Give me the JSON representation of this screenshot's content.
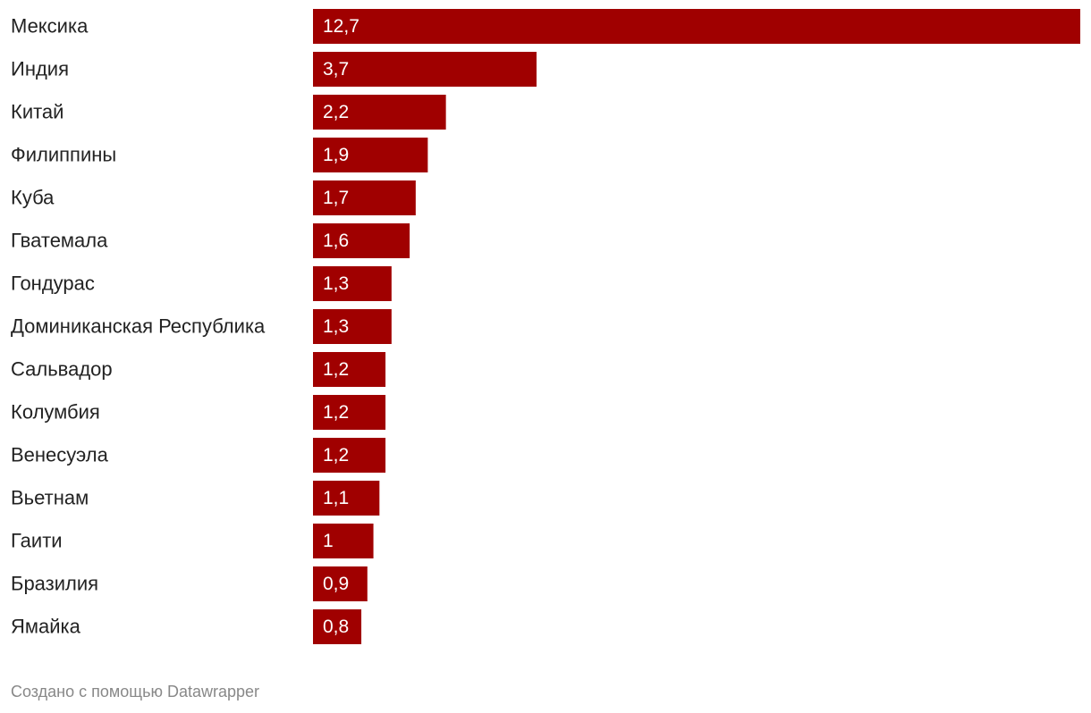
{
  "chart_data": {
    "type": "bar",
    "orientation": "horizontal",
    "color": "#a00000",
    "categories": [
      "Мексика",
      "Индия",
      "Китай",
      "Филиппины",
      "Куба",
      "Гватемала",
      "Гондурас",
      "Доминиканская Республика",
      "Сальвадор",
      "Колумбия",
      "Венесуэла",
      "Вьетнам",
      "Гаити",
      "Бразилия",
      "Ямайка"
    ],
    "values": [
      12.7,
      3.7,
      2.2,
      1.9,
      1.7,
      1.6,
      1.3,
      1.3,
      1.2,
      1.2,
      1.2,
      1.1,
      1,
      0.9,
      0.8
    ],
    "value_labels": [
      "12,7",
      "3,7",
      "2,2",
      "1,9",
      "1,7",
      "1,6",
      "1,3",
      "1,3",
      "1,2",
      "1,2",
      "1,2",
      "1,1",
      "1",
      "0,9",
      "0,8"
    ],
    "source": "Создано с помощью Datawrapper"
  }
}
